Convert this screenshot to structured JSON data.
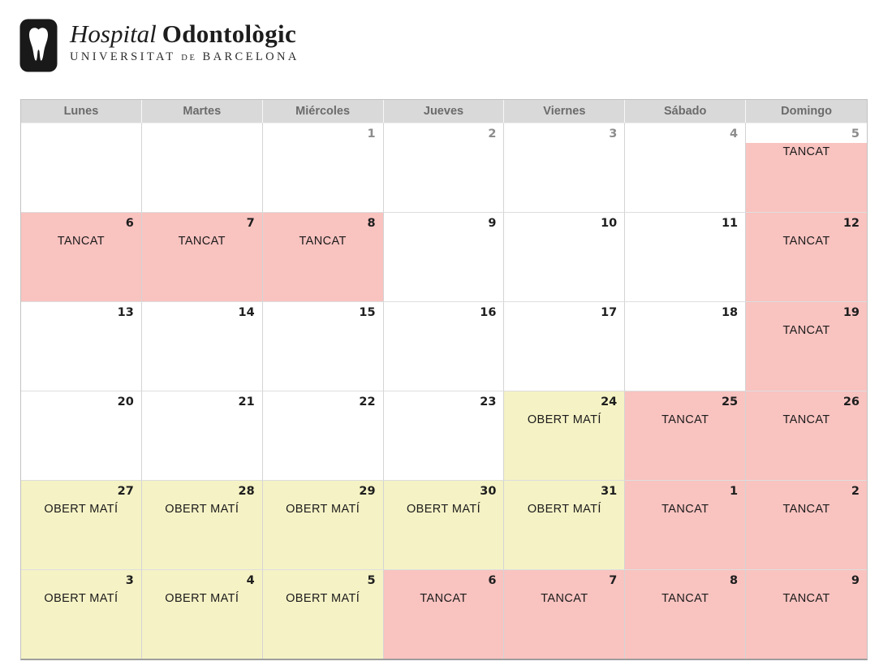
{
  "logo": {
    "icon": "tooth-icon",
    "title_italic": "Hospital",
    "title_bold": "Odontològic",
    "subtitle_university": "UNIVERSITAT",
    "subtitle_de": "DE",
    "subtitle_city": "BARCELONA"
  },
  "calendar": {
    "day_headers": [
      "Lunes",
      "Martes",
      "Miércoles",
      "Jueves",
      "Viernes",
      "Sábado",
      "Domingo"
    ],
    "statuses": {
      "closed": {
        "label": "TANCAT",
        "bg": "#f9c3c0"
      },
      "open_morning": {
        "label": "OBERT MATÍ",
        "bg": "#f5f2c5"
      }
    },
    "header_bg": "#d9d9d9",
    "weeks": [
      [
        {},
        {},
        {
          "n": "1",
          "muted": true
        },
        {
          "n": "2",
          "muted": true
        },
        {
          "n": "3",
          "muted": true
        },
        {
          "n": "4",
          "muted": true
        },
        {
          "n": "5",
          "muted": true,
          "status": "closed",
          "partial": true
        }
      ],
      [
        {
          "n": "6",
          "status": "closed"
        },
        {
          "n": "7",
          "status": "closed"
        },
        {
          "n": "8",
          "status": "closed"
        },
        {
          "n": "9"
        },
        {
          "n": "10"
        },
        {
          "n": "11"
        },
        {
          "n": "12",
          "status": "closed"
        }
      ],
      [
        {
          "n": "13"
        },
        {
          "n": "14"
        },
        {
          "n": "15"
        },
        {
          "n": "16"
        },
        {
          "n": "17"
        },
        {
          "n": "18"
        },
        {
          "n": "19",
          "status": "closed"
        }
      ],
      [
        {
          "n": "20"
        },
        {
          "n": "21"
        },
        {
          "n": "22"
        },
        {
          "n": "23"
        },
        {
          "n": "24",
          "status": "open_morning"
        },
        {
          "n": "25",
          "status": "closed"
        },
        {
          "n": "26",
          "status": "closed"
        }
      ],
      [
        {
          "n": "27",
          "status": "open_morning"
        },
        {
          "n": "28",
          "status": "open_morning"
        },
        {
          "n": "29",
          "status": "open_morning"
        },
        {
          "n": "30",
          "status": "open_morning"
        },
        {
          "n": "31",
          "status": "open_morning"
        },
        {
          "n": "1",
          "status": "closed"
        },
        {
          "n": "2",
          "status": "closed"
        }
      ],
      [
        {
          "n": "3",
          "status": "open_morning"
        },
        {
          "n": "4",
          "status": "open_morning"
        },
        {
          "n": "5",
          "status": "open_morning"
        },
        {
          "n": "6",
          "status": "closed"
        },
        {
          "n": "7",
          "status": "closed"
        },
        {
          "n": "8",
          "status": "closed"
        },
        {
          "n": "9",
          "status": "closed"
        }
      ]
    ]
  }
}
